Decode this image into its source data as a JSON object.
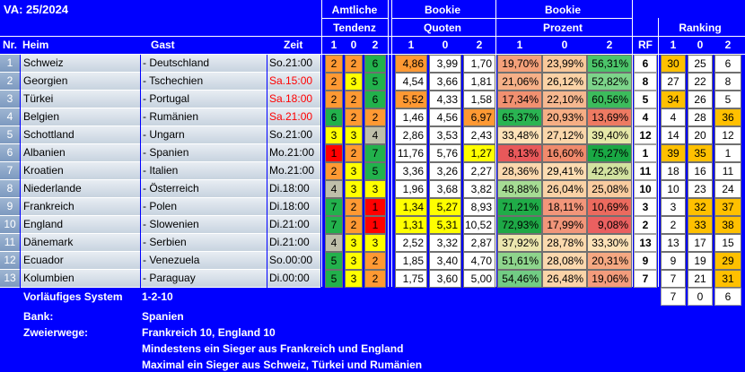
{
  "title": "VA: 25/2024",
  "headers": {
    "amtliche": "Amtliche",
    "tendenz": "Tendenz",
    "bookie1": "Bookie",
    "quoten": "Quoten",
    "bookie2": "Bookie",
    "prozent": "Prozent",
    "ranking": "Ranking",
    "nr": "Nr.",
    "heim": "Heim",
    "gast": "Gast",
    "zeit": "Zeit",
    "rf": "RF",
    "c1": "1",
    "c0": "0",
    "c2": "2"
  },
  "colors": {
    "blue": "#0000ff",
    "red": "#ff0000",
    "green": "#22b14c",
    "yellow": "#ffff00",
    "orange": "#ff9933",
    "gray": "#bfbfaa",
    "time_red": "#ff0000"
  },
  "rows": [
    {
      "nr": "1",
      "heim": "Schweiz",
      "gast": "- Deutschland",
      "zeit": "So.21:00",
      "zeit_red": false,
      "t": [
        {
          "v": "2",
          "c": "#ff9933"
        },
        {
          "v": "2",
          "c": "#ff9933"
        },
        {
          "v": "6",
          "c": "#22b14c"
        }
      ],
      "q": [
        {
          "v": "4,86",
          "c": "#ff9933"
        },
        {
          "v": "3,99",
          "c": "#ffffff"
        },
        {
          "v": "1,70",
          "c": "#ffffff"
        }
      ],
      "p": [
        {
          "v": "19,70%",
          "c": "#f4a07a"
        },
        {
          "v": "23,99%",
          "c": "#f8c89a"
        },
        {
          "v": "56,31%",
          "c": "#4cc46a"
        }
      ],
      "rf": "6",
      "r": [
        {
          "v": "30",
          "c": "#ffc000"
        },
        {
          "v": "25",
          "c": "#ffffff"
        },
        {
          "v": "6",
          "c": "#ffffff"
        }
      ]
    },
    {
      "nr": "2",
      "heim": "Georgien",
      "gast": "- Tschechien",
      "zeit": "Sa.15:00",
      "zeit_red": true,
      "t": [
        {
          "v": "2",
          "c": "#ff9933"
        },
        {
          "v": "3",
          "c": "#ffff00"
        },
        {
          "v": "5",
          "c": "#22b14c"
        }
      ],
      "q": [
        {
          "v": "4,54",
          "c": "#ffffff"
        },
        {
          "v": "3,66",
          "c": "#ffffff"
        },
        {
          "v": "1,81",
          "c": "#ffffff"
        }
      ],
      "p": [
        {
          "v": "21,06%",
          "c": "#f6b088"
        },
        {
          "v": "26,12%",
          "c": "#fad2a6"
        },
        {
          "v": "52,82%",
          "c": "#7cd48a"
        }
      ],
      "rf": "8",
      "r": [
        {
          "v": "27",
          "c": "#ffffff"
        },
        {
          "v": "22",
          "c": "#ffffff"
        },
        {
          "v": "8",
          "c": "#ffffff"
        }
      ]
    },
    {
      "nr": "3",
      "heim": "Türkei",
      "gast": "- Portugal",
      "zeit": "Sa.18:00",
      "zeit_red": true,
      "t": [
        {
          "v": "2",
          "c": "#ff9933"
        },
        {
          "v": "2",
          "c": "#ff9933"
        },
        {
          "v": "6",
          "c": "#22b14c"
        }
      ],
      "q": [
        {
          "v": "5,52",
          "c": "#ff9933"
        },
        {
          "v": "4,33",
          "c": "#ffffff"
        },
        {
          "v": "1,58",
          "c": "#ffffff"
        }
      ],
      "p": [
        {
          "v": "17,34%",
          "c": "#f19070"
        },
        {
          "v": "22,10%",
          "c": "#f6b890"
        },
        {
          "v": "60,56%",
          "c": "#3cbc5c"
        }
      ],
      "rf": "5",
      "r": [
        {
          "v": "34",
          "c": "#ffc000"
        },
        {
          "v": "26",
          "c": "#ffffff"
        },
        {
          "v": "5",
          "c": "#ffffff"
        }
      ]
    },
    {
      "nr": "4",
      "heim": "Belgien",
      "gast": "- Rumänien",
      "zeit": "Sa.21:00",
      "zeit_red": true,
      "t": [
        {
          "v": "6",
          "c": "#22b14c"
        },
        {
          "v": "2",
          "c": "#ff9933"
        },
        {
          "v": "2",
          "c": "#ff9933"
        }
      ],
      "q": [
        {
          "v": "1,46",
          "c": "#ffffff"
        },
        {
          "v": "4,56",
          "c": "#ffffff"
        },
        {
          "v": "6,97",
          "c": "#ff9933"
        }
      ],
      "p": [
        {
          "v": "65,37%",
          "c": "#2ab452"
        },
        {
          "v": "20,93%",
          "c": "#f6ae84"
        },
        {
          "v": "13,69%",
          "c": "#ee7a62"
        }
      ],
      "rf": "4",
      "r": [
        {
          "v": "4",
          "c": "#ffffff"
        },
        {
          "v": "28",
          "c": "#ffffff"
        },
        {
          "v": "36",
          "c": "#ffc000"
        }
      ]
    },
    {
      "nr": "5",
      "heim": "Schottland",
      "gast": "- Ungarn",
      "zeit": "So.21:00",
      "zeit_red": false,
      "t": [
        {
          "v": "3",
          "c": "#ffff00"
        },
        {
          "v": "3",
          "c": "#ffff00"
        },
        {
          "v": "4",
          "c": "#bfbfaa"
        }
      ],
      "q": [
        {
          "v": "2,86",
          "c": "#ffffff"
        },
        {
          "v": "3,53",
          "c": "#ffffff"
        },
        {
          "v": "2,43",
          "c": "#ffffff"
        }
      ],
      "p": [
        {
          "v": "33,48%",
          "c": "#fde2b8"
        },
        {
          "v": "27,12%",
          "c": "#fad6aa"
        },
        {
          "v": "39,40%",
          "c": "#e6e8a8"
        }
      ],
      "rf": "12",
      "r": [
        {
          "v": "14",
          "c": "#ffffff"
        },
        {
          "v": "20",
          "c": "#ffffff"
        },
        {
          "v": "12",
          "c": "#ffffff"
        }
      ]
    },
    {
      "nr": "6",
      "heim": "Albanien",
      "gast": "- Spanien",
      "zeit": "Mo.21:00",
      "zeit_red": false,
      "t": [
        {
          "v": "1",
          "c": "#ff0000"
        },
        {
          "v": "2",
          "c": "#ff9933"
        },
        {
          "v": "7",
          "c": "#22b14c"
        }
      ],
      "q": [
        {
          "v": "11,76",
          "c": "#ffffff"
        },
        {
          "v": "5,76",
          "c": "#ffffff"
        },
        {
          "v": "1,27",
          "c": "#ffff00"
        }
      ],
      "p": [
        {
          "v": "8,13%",
          "c": "#e8585a"
        },
        {
          "v": "16,60%",
          "c": "#f08a6c"
        },
        {
          "v": "75,27%",
          "c": "#1aa844"
        }
      ],
      "rf": "1",
      "r": [
        {
          "v": "39",
          "c": "#ffc000"
        },
        {
          "v": "35",
          "c": "#ffc000"
        },
        {
          "v": "1",
          "c": "#ffffff"
        }
      ]
    },
    {
      "nr": "7",
      "heim": "Kroatien",
      "gast": "- Italien",
      "zeit": "Mo.21:00",
      "zeit_red": false,
      "t": [
        {
          "v": "2",
          "c": "#ff9933"
        },
        {
          "v": "3",
          "c": "#ffff00"
        },
        {
          "v": "5",
          "c": "#22b14c"
        }
      ],
      "q": [
        {
          "v": "3,36",
          "c": "#ffffff"
        },
        {
          "v": "3,26",
          "c": "#ffffff"
        },
        {
          "v": "2,27",
          "c": "#ffffff"
        }
      ],
      "p": [
        {
          "v": "28,36%",
          "c": "#fbd8ae"
        },
        {
          "v": "29,41%",
          "c": "#fcdcb2"
        },
        {
          "v": "42,23%",
          "c": "#d2e2a0"
        }
      ],
      "rf": "11",
      "r": [
        {
          "v": "18",
          "c": "#ffffff"
        },
        {
          "v": "16",
          "c": "#ffffff"
        },
        {
          "v": "11",
          "c": "#ffffff"
        }
      ]
    },
    {
      "nr": "8",
      "heim": "Niederlande",
      "gast": "- Österreich",
      "zeit": "Di.18:00",
      "zeit_red": false,
      "t": [
        {
          "v": "4",
          "c": "#bfbfaa"
        },
        {
          "v": "3",
          "c": "#ffff00"
        },
        {
          "v": "3",
          "c": "#ffff00"
        }
      ],
      "q": [
        {
          "v": "1,96",
          "c": "#ffffff"
        },
        {
          "v": "3,68",
          "c": "#ffffff"
        },
        {
          "v": "3,82",
          "c": "#ffffff"
        }
      ],
      "p": [
        {
          "v": "48,88%",
          "c": "#a6dc94"
        },
        {
          "v": "26,04%",
          "c": "#fad2a6"
        },
        {
          "v": "25,08%",
          "c": "#f9cca0"
        }
      ],
      "rf": "10",
      "r": [
        {
          "v": "10",
          "c": "#ffffff"
        },
        {
          "v": "23",
          "c": "#ffffff"
        },
        {
          "v": "24",
          "c": "#ffffff"
        }
      ]
    },
    {
      "nr": "9",
      "heim": "Frankreich",
      "gast": "- Polen",
      "zeit": "Di.18:00",
      "zeit_red": false,
      "t": [
        {
          "v": "7",
          "c": "#22b14c"
        },
        {
          "v": "2",
          "c": "#ff9933"
        },
        {
          "v": "1",
          "c": "#ff0000"
        }
      ],
      "q": [
        {
          "v": "1,34",
          "c": "#ffff00"
        },
        {
          "v": "5,27",
          "c": "#ffff00"
        },
        {
          "v": "8,93",
          "c": "#ffffff"
        }
      ],
      "p": [
        {
          "v": "71,21%",
          "c": "#20ac48"
        },
        {
          "v": "18,11%",
          "c": "#f2967a"
        },
        {
          "v": "10,69%",
          "c": "#ec6a5e"
        }
      ],
      "rf": "3",
      "r": [
        {
          "v": "3",
          "c": "#ffffff"
        },
        {
          "v": "32",
          "c": "#ffc000"
        },
        {
          "v": "37",
          "c": "#ffc000"
        }
      ]
    },
    {
      "nr": "10",
      "heim": "England",
      "gast": "- Slowenien",
      "zeit": "Di.21:00",
      "zeit_red": false,
      "t": [
        {
          "v": "7",
          "c": "#22b14c"
        },
        {
          "v": "2",
          "c": "#ff9933"
        },
        {
          "v": "1",
          "c": "#ff0000"
        }
      ],
      "q": [
        {
          "v": "1,31",
          "c": "#ffff00"
        },
        {
          "v": "5,31",
          "c": "#ffff00"
        },
        {
          "v": "10,52",
          "c": "#ffffff"
        }
      ],
      "p": [
        {
          "v": "72,93%",
          "c": "#1ea846"
        },
        {
          "v": "17,99%",
          "c": "#f2967a"
        },
        {
          "v": "9,08%",
          "c": "#ea6060"
        }
      ],
      "rf": "2",
      "r": [
        {
          "v": "2",
          "c": "#ffffff"
        },
        {
          "v": "33",
          "c": "#ffc000"
        },
        {
          "v": "38",
          "c": "#ffc000"
        }
      ]
    },
    {
      "nr": "11",
      "heim": "Dänemark",
      "gast": "- Serbien",
      "zeit": "Di.21:00",
      "zeit_red": false,
      "t": [
        {
          "v": "4",
          "c": "#bfbfaa"
        },
        {
          "v": "3",
          "c": "#ffff00"
        },
        {
          "v": "3",
          "c": "#ffff00"
        }
      ],
      "q": [
        {
          "v": "2,52",
          "c": "#ffffff"
        },
        {
          "v": "3,32",
          "c": "#ffffff"
        },
        {
          "v": "2,87",
          "c": "#ffffff"
        }
      ],
      "p": [
        {
          "v": "37,92%",
          "c": "#ece6ae"
        },
        {
          "v": "28,78%",
          "c": "#fbdaae"
        },
        {
          "v": "33,30%",
          "c": "#fde2b8"
        }
      ],
      "rf": "13",
      "r": [
        {
          "v": "13",
          "c": "#ffffff"
        },
        {
          "v": "17",
          "c": "#ffffff"
        },
        {
          "v": "15",
          "c": "#ffffff"
        }
      ]
    },
    {
      "nr": "12",
      "heim": "Ecuador",
      "gast": "- Venezuela",
      "zeit": "So.00:00",
      "zeit_red": false,
      "t": [
        {
          "v": "5",
          "c": "#22b14c"
        },
        {
          "v": "3",
          "c": "#ffff00"
        },
        {
          "v": "2",
          "c": "#ff9933"
        }
      ],
      "q": [
        {
          "v": "1,85",
          "c": "#ffffff"
        },
        {
          "v": "3,40",
          "c": "#ffffff"
        },
        {
          "v": "4,70",
          "c": "#ffffff"
        }
      ],
      "p": [
        {
          "v": "51,61%",
          "c": "#8ed48c"
        },
        {
          "v": "28,08%",
          "c": "#fbd8ae"
        },
        {
          "v": "20,31%",
          "c": "#f5a882"
        }
      ],
      "rf": "9",
      "r": [
        {
          "v": "9",
          "c": "#ffffff"
        },
        {
          "v": "19",
          "c": "#ffffff"
        },
        {
          "v": "29",
          "c": "#ffc000"
        }
      ]
    },
    {
      "nr": "13",
      "heim": "Kolumbien",
      "gast": "- Paraguay",
      "zeit": "Di.00:00",
      "zeit_red": false,
      "t": [
        {
          "v": "5",
          "c": "#22b14c"
        },
        {
          "v": "3",
          "c": "#ffff00"
        },
        {
          "v": "2",
          "c": "#ff9933"
        }
      ],
      "q": [
        {
          "v": "1,75",
          "c": "#ffffff"
        },
        {
          "v": "3,60",
          "c": "#ffffff"
        },
        {
          "v": "5,00",
          "c": "#ffffff"
        }
      ],
      "p": [
        {
          "v": "54,46%",
          "c": "#72cc84"
        },
        {
          "v": "26,48%",
          "c": "#fad4a8"
        },
        {
          "v": "19,06%",
          "c": "#f39c7c"
        }
      ],
      "rf": "7",
      "r": [
        {
          "v": "7",
          "c": "#ffffff"
        },
        {
          "v": "21",
          "c": "#ffffff"
        },
        {
          "v": "31",
          "c": "#ffc000"
        }
      ]
    }
  ],
  "ranking_totals": [
    "7",
    "0",
    "6"
  ],
  "footer": {
    "system_label": "Vorläufiges System",
    "system_value": "1-2-10",
    "bank_label": "Bank:",
    "bank_value": "Spanien",
    "zweier_label": "Zweierwege:",
    "zweier_lines": [
      "Frankreich 10, England 10",
      "Mindestens ein Sieger aus Frankreich und England",
      "Maximal ein Sieger aus Schweiz, Türkei und Rumänien"
    ]
  }
}
